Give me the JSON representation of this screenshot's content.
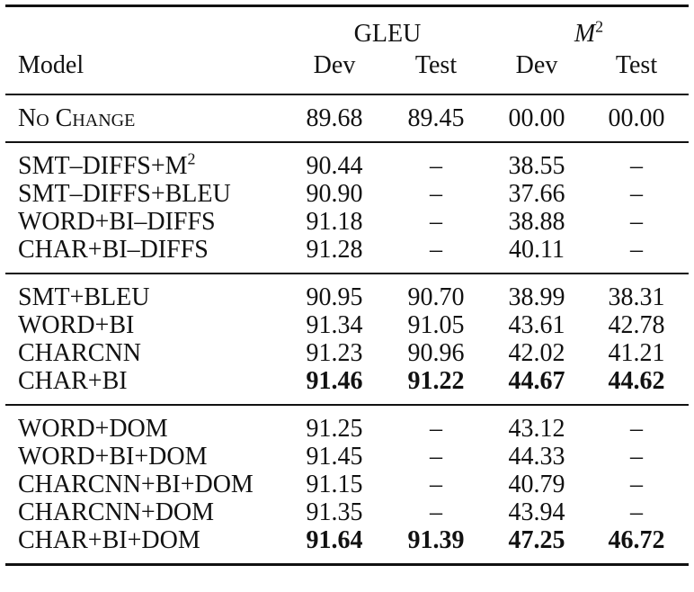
{
  "header": {
    "group1": "GLEU",
    "group2_base": "M",
    "group2_sup": "2",
    "model": "Model",
    "dev1": "Dev",
    "test1": "Test",
    "dev2": "Dev",
    "test2": "Test"
  },
  "groups": [
    {
      "rows": [
        {
          "model": "No Change",
          "gleu_dev": "89.68",
          "gleu_test": "89.45",
          "m2_dev": "00.00",
          "m2_test": "00.00",
          "bold": false
        }
      ]
    },
    {
      "rows": [
        {
          "model": "SMT–DIFFS+M",
          "model_sup": "2",
          "gleu_dev": "90.44",
          "gleu_test": "–",
          "m2_dev": "38.55",
          "m2_test": "–",
          "bold": false
        },
        {
          "model": "SMT–DIFFS+BLEU",
          "gleu_dev": "90.90",
          "gleu_test": "–",
          "m2_dev": "37.66",
          "m2_test": "–",
          "bold": false
        },
        {
          "model": "WORD+BI–DIFFS",
          "gleu_dev": "91.18",
          "gleu_test": "–",
          "m2_dev": "38.88",
          "m2_test": "–",
          "bold": false
        },
        {
          "model": "CHAR+BI–DIFFS",
          "gleu_dev": "91.28",
          "gleu_test": "–",
          "m2_dev": "40.11",
          "m2_test": "–",
          "bold": false
        }
      ]
    },
    {
      "rows": [
        {
          "model": "SMT+BLEU",
          "gleu_dev": "90.95",
          "gleu_test": "90.70",
          "m2_dev": "38.99",
          "m2_test": "38.31",
          "bold": false
        },
        {
          "model": "WORD+BI",
          "gleu_dev": "91.34",
          "gleu_test": "91.05",
          "m2_dev": "43.61",
          "m2_test": "42.78",
          "bold": false
        },
        {
          "model": "CHARCNN",
          "gleu_dev": "91.23",
          "gleu_test": "90.96",
          "m2_dev": "42.02",
          "m2_test": "41.21",
          "bold": false
        },
        {
          "model": "CHAR+BI",
          "gleu_dev": "91.46",
          "gleu_test": "91.22",
          "m2_dev": "44.67",
          "m2_test": "44.62",
          "bold": true
        }
      ]
    },
    {
      "rows": [
        {
          "model": "WORD+DOM",
          "gleu_dev": "91.25",
          "gleu_test": "–",
          "m2_dev": "43.12",
          "m2_test": "–",
          "bold": false
        },
        {
          "model": "WORD+BI+DOM",
          "gleu_dev": "91.45",
          "gleu_test": "–",
          "m2_dev": "44.33",
          "m2_test": "–",
          "bold": false
        },
        {
          "model": "CHARCNN+BI+DOM",
          "gleu_dev": "91.15",
          "gleu_test": "–",
          "m2_dev": "40.79",
          "m2_test": "–",
          "bold": false
        },
        {
          "model": "CHARCNN+DOM",
          "gleu_dev": "91.35",
          "gleu_test": "–",
          "m2_dev": "43.94",
          "m2_test": "–",
          "bold": false
        },
        {
          "model": "CHAR+BI+DOM",
          "gleu_dev": "91.64",
          "gleu_test": "91.39",
          "m2_dev": "47.25",
          "m2_test": "46.72",
          "bold": true
        }
      ]
    }
  ]
}
